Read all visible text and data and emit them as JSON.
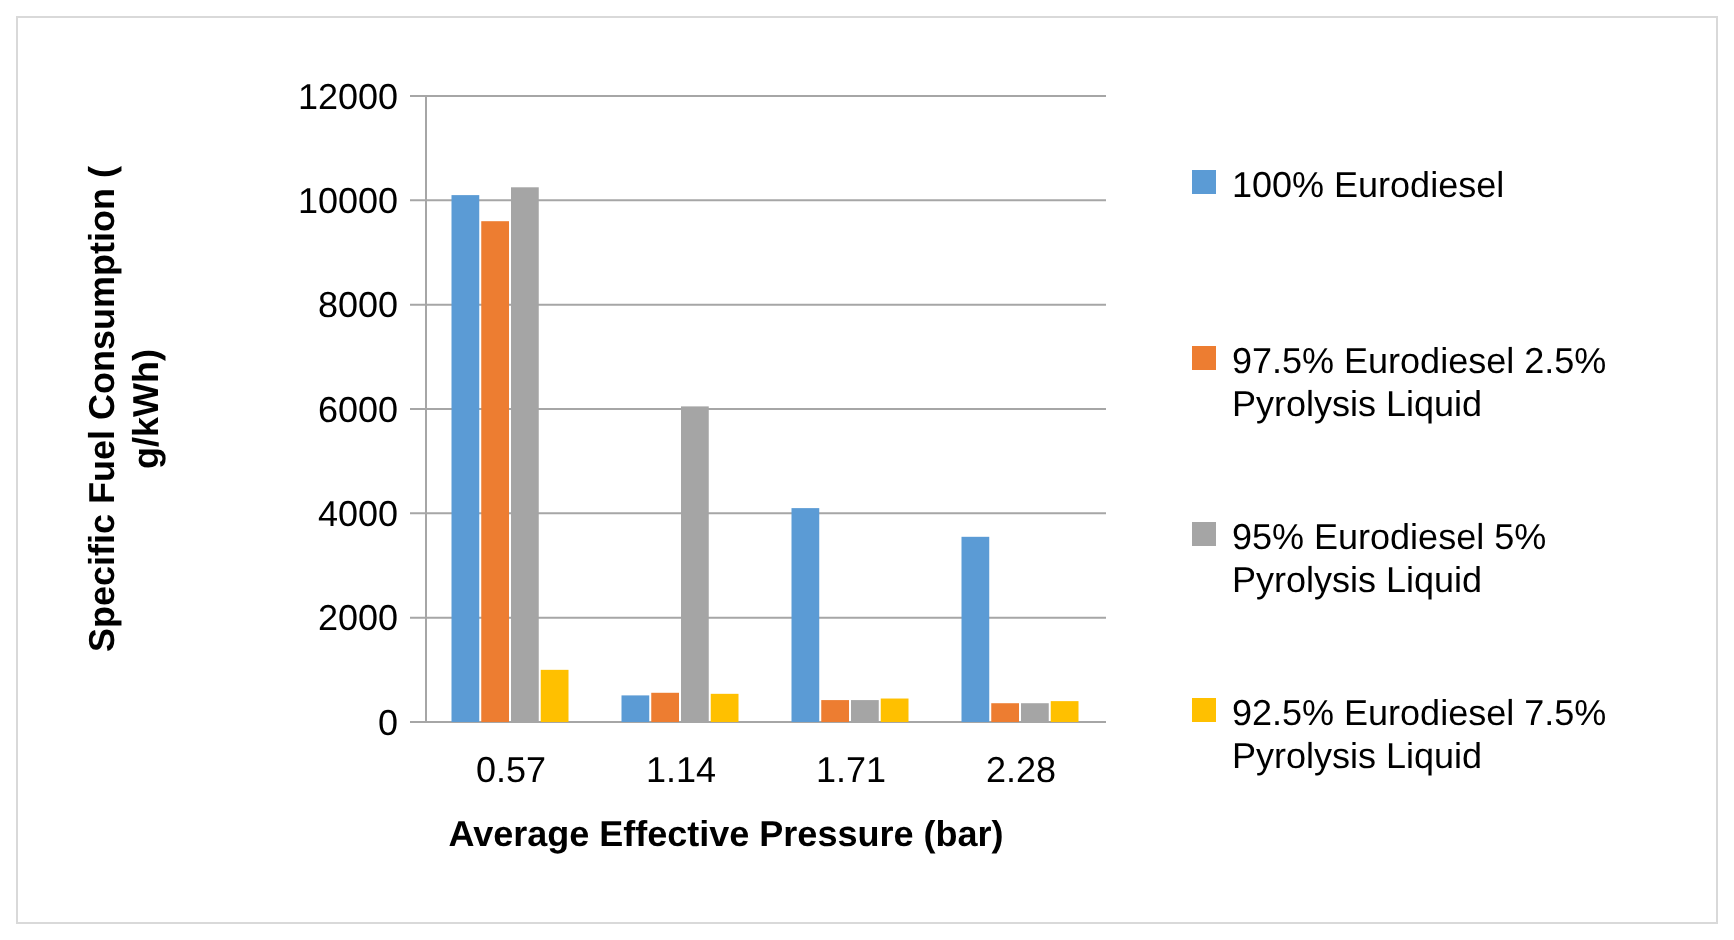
{
  "chart_data": {
    "type": "bar",
    "xlabel": "Average Effective Pressure (bar)",
    "ylabel": "Specific Fuel Consumption ( g/kWh)",
    "categories": [
      "0.57",
      "1.14",
      "1.71",
      "2.28"
    ],
    "series": [
      {
        "name": "100% Eurodiesel",
        "color": "#5b9bd5",
        "values": [
          10100,
          510,
          4100,
          3550
        ]
      },
      {
        "name": "97.5% Eurodiesel 2.5% Pyrolysis Liquid",
        "color": "#ed7d31",
        "values": [
          9600,
          560,
          420,
          360
        ]
      },
      {
        "name": "95% Eurodiesel 5% Pyrolysis Liquid",
        "color": "#a5a5a5",
        "values": [
          10250,
          6050,
          420,
          360
        ]
      },
      {
        "name": "92.5% Eurodiesel 7.5% Pyrolysis Liquid",
        "color": "#ffc000",
        "values": [
          1000,
          540,
          450,
          400
        ]
      }
    ],
    "ylim": [
      0,
      12000
    ],
    "yticks": [
      0,
      2000,
      4000,
      6000,
      8000,
      10000,
      12000
    ],
    "grid": "y",
    "legend": "right"
  }
}
